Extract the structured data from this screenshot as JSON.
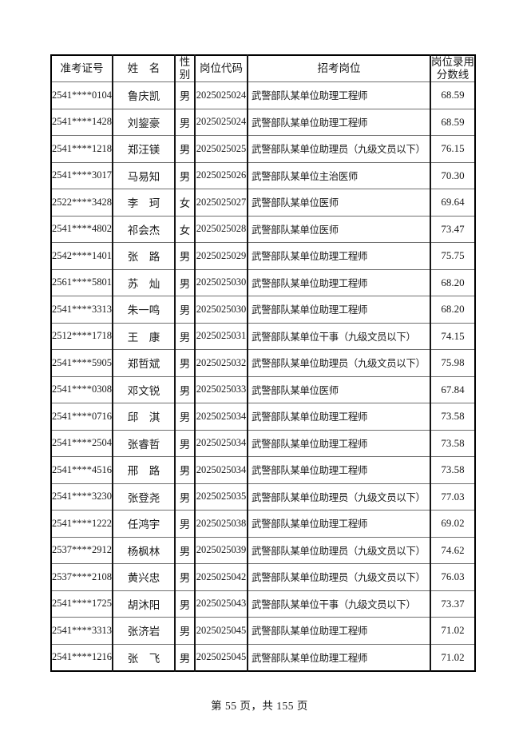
{
  "page": {
    "background": "#ffffff",
    "text_color": "#1a1a1a",
    "border_color": "#000000",
    "grid_line_color": "#6f6f6f"
  },
  "table": {
    "headers": {
      "exam_no": "准考证号",
      "name": "姓　名",
      "gender": "性\n别",
      "job_code": "岗位代码",
      "job_title": "招考岗位",
      "score": "岗位录用\n分数线"
    },
    "rows": [
      {
        "exam_no": "2541****0104",
        "name": "鲁庆凯",
        "gender": "男",
        "job_code": "2025025024",
        "job_title": "武警部队某单位助理工程师",
        "score": "68.59"
      },
      {
        "exam_no": "2541****1428",
        "name": "刘鋆豪",
        "gender": "男",
        "job_code": "2025025024",
        "job_title": "武警部队某单位助理工程师",
        "score": "68.59"
      },
      {
        "exam_no": "2541****1218",
        "name": "郑汪镁",
        "gender": "男",
        "job_code": "2025025025",
        "job_title": "武警部队某单位助理员（九级文员以下）",
        "score": "76.15"
      },
      {
        "exam_no": "2541****3017",
        "name": "马易知",
        "gender": "男",
        "job_code": "2025025026",
        "job_title": "武警部队某单位主治医师",
        "score": "70.30"
      },
      {
        "exam_no": "2522****3428",
        "name": "李　珂",
        "gender": "女",
        "job_code": "2025025027",
        "job_title": "武警部队某单位医师",
        "score": "69.64"
      },
      {
        "exam_no": "2541****4802",
        "name": "祁会杰",
        "gender": "女",
        "job_code": "2025025028",
        "job_title": "武警部队某单位医师",
        "score": "73.47"
      },
      {
        "exam_no": "2542****1401",
        "name": "张　路",
        "gender": "男",
        "job_code": "2025025029",
        "job_title": "武警部队某单位助理工程师",
        "score": "75.75"
      },
      {
        "exam_no": "2561****5801",
        "name": "苏　灿",
        "gender": "男",
        "job_code": "2025025030",
        "job_title": "武警部队某单位助理工程师",
        "score": "68.20"
      },
      {
        "exam_no": "2541****3313",
        "name": "朱一鸣",
        "gender": "男",
        "job_code": "2025025030",
        "job_title": "武警部队某单位助理工程师",
        "score": "68.20"
      },
      {
        "exam_no": "2512****1718",
        "name": "王　康",
        "gender": "男",
        "job_code": "2025025031",
        "job_title": "武警部队某单位干事（九级文员以下）",
        "score": "74.15"
      },
      {
        "exam_no": "2541****5905",
        "name": "郑哲斌",
        "gender": "男",
        "job_code": "2025025032",
        "job_title": "武警部队某单位助理员（九级文员以下）",
        "score": "75.98"
      },
      {
        "exam_no": "2541****0308",
        "name": "邓文锐",
        "gender": "男",
        "job_code": "2025025033",
        "job_title": "武警部队某单位医师",
        "score": "67.84"
      },
      {
        "exam_no": "2541****0716",
        "name": "邱　淇",
        "gender": "男",
        "job_code": "2025025034",
        "job_title": "武警部队某单位助理工程师",
        "score": "73.58"
      },
      {
        "exam_no": "2541****2504",
        "name": "张睿哲",
        "gender": "男",
        "job_code": "2025025034",
        "job_title": "武警部队某单位助理工程师",
        "score": "73.58"
      },
      {
        "exam_no": "2541****4516",
        "name": "邢　路",
        "gender": "男",
        "job_code": "2025025034",
        "job_title": "武警部队某单位助理工程师",
        "score": "73.58"
      },
      {
        "exam_no": "2541****3230",
        "name": "张登尧",
        "gender": "男",
        "job_code": "2025025035",
        "job_title": "武警部队某单位助理员（九级文员以下）",
        "score": "77.03"
      },
      {
        "exam_no": "2541****1222",
        "name": "任鸿宇",
        "gender": "男",
        "job_code": "2025025038",
        "job_title": "武警部队某单位助理工程师",
        "score": "69.02"
      },
      {
        "exam_no": "2537****2912",
        "name": "杨枫林",
        "gender": "男",
        "job_code": "2025025039",
        "job_title": "武警部队某单位助理员（九级文员以下）",
        "score": "74.62"
      },
      {
        "exam_no": "2537****2108",
        "name": "黄兴忠",
        "gender": "男",
        "job_code": "2025025042",
        "job_title": "武警部队某单位助理员（九级文员以下）",
        "score": "76.03"
      },
      {
        "exam_no": "2541****1725",
        "name": "胡沐阳",
        "gender": "男",
        "job_code": "2025025043",
        "job_title": "武警部队某单位干事（九级文员以下）",
        "score": "73.37"
      },
      {
        "exam_no": "2541****3313",
        "name": "张济岩",
        "gender": "男",
        "job_code": "2025025045",
        "job_title": "武警部队某单位助理工程师",
        "score": "71.02"
      },
      {
        "exam_no": "2541****1216",
        "name": "张　飞",
        "gender": "男",
        "job_code": "2025025045",
        "job_title": "武警部队某单位助理工程师",
        "score": "71.02"
      }
    ]
  },
  "footer": {
    "page_text": "第 55 页，共 155 页"
  }
}
